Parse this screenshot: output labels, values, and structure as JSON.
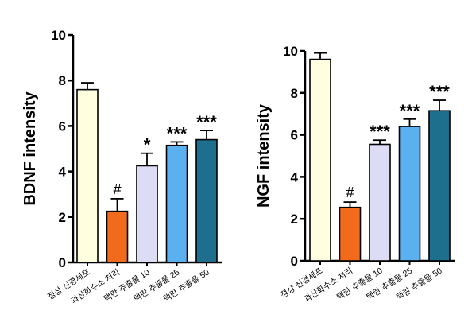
{
  "chart_data": [
    {
      "type": "bar",
      "ylabel": "BDNF intensity",
      "ylim": [
        0,
        10
      ],
      "yticks": [
        "0",
        "2",
        "4",
        "6",
        "8",
        "10"
      ],
      "categories": [
        "정상 신경세포",
        "과산화수소 처리",
        "택란 추출물 10",
        "택란 추출물 25",
        "택란 추출물 50"
      ],
      "values": [
        7.6,
        2.25,
        4.25,
        5.15,
        5.4
      ],
      "errors": [
        0.3,
        0.55,
        0.55,
        0.15,
        0.4
      ],
      "annotations": [
        "",
        "#",
        "*",
        "***",
        "***"
      ],
      "colors": [
        "#ffffe0",
        "#f26b1d",
        "#dcdcf5",
        "#5bb0f0",
        "#1e6e8e"
      ]
    },
    {
      "type": "bar",
      "ylabel": "NGF intensity",
      "ylim": [
        0,
        10
      ],
      "yticks": [
        "0",
        "2",
        "4",
        "6",
        "8",
        "10"
      ],
      "categories": [
        "정상 신경세포",
        "과산화수소 처리",
        "택란 추출물 10",
        "택란 추출물 25",
        "택란 추출물 50"
      ],
      "values": [
        9.6,
        2.55,
        5.55,
        6.4,
        7.15
      ],
      "errors": [
        0.3,
        0.25,
        0.2,
        0.35,
        0.5
      ],
      "annotations": [
        "",
        "#",
        "***",
        "***",
        "***"
      ],
      "colors": [
        "#ffffe0",
        "#f26b1d",
        "#dcdcf5",
        "#5bb0f0",
        "#1e6e8e"
      ]
    }
  ]
}
